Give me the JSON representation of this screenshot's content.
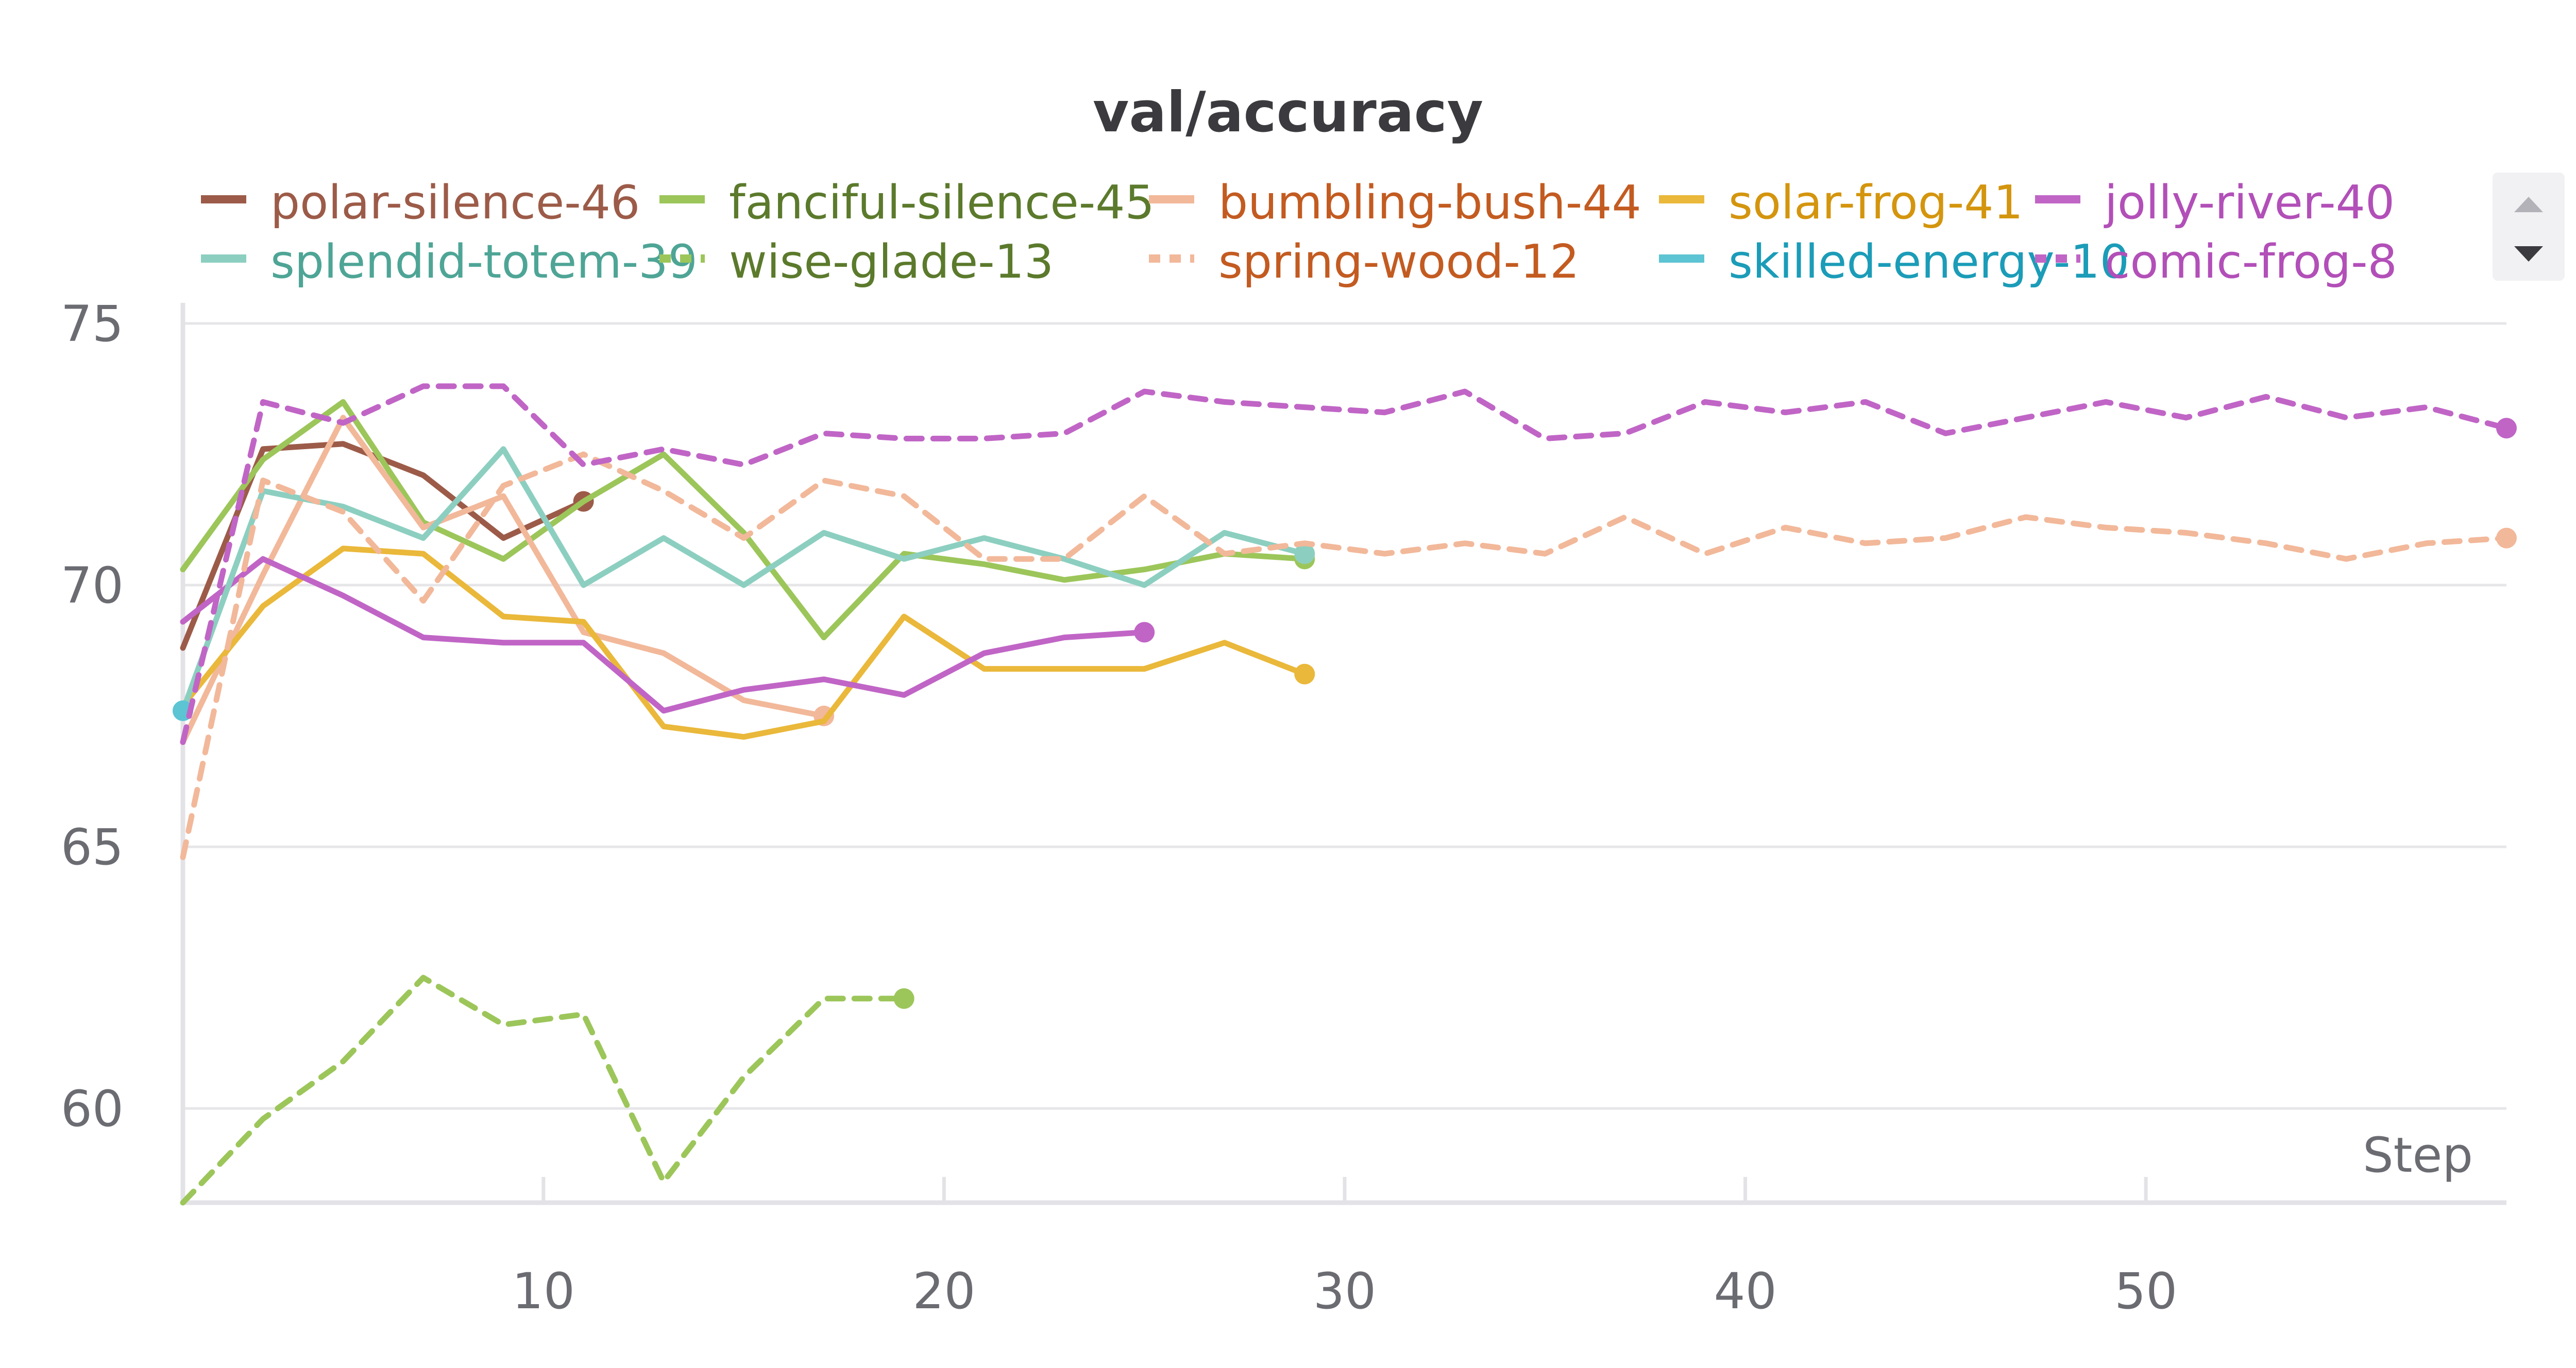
{
  "chart_data": {
    "type": "line",
    "title": "val/accuracy",
    "xlabel": "Step",
    "ylabel": "",
    "xlim": [
      1,
      59
    ],
    "ylim": [
      58.2,
      75
    ],
    "xticks": [
      10,
      20,
      30,
      40,
      50
    ],
    "yticks": [
      60,
      65,
      70,
      75
    ],
    "grid": true,
    "legend_position": "top",
    "series": [
      {
        "name": "polar-silence-46",
        "color": "#9c5b48",
        "dashed": false,
        "x": [
          1,
          3,
          5,
          7,
          9,
          11
        ],
        "y": [
          68.8,
          72.6,
          72.7,
          72.1,
          70.9,
          71.6
        ]
      },
      {
        "name": "fanciful-silence-45",
        "color": "#9cc65a",
        "label_color": "#5b7a2c",
        "dashed": false,
        "x": [
          1,
          3,
          5,
          7,
          9,
          11,
          13,
          15,
          17,
          19,
          21,
          23,
          25,
          27,
          29
        ],
        "y": [
          70.3,
          72.4,
          73.5,
          71.2,
          70.5,
          71.6,
          72.5,
          71.0,
          69.0,
          70.6,
          70.4,
          70.1,
          70.3,
          70.6,
          70.5
        ]
      },
      {
        "name": "bumbling-bush-44",
        "color": "#f2b89a",
        "label_color": "#c35b21",
        "dashed": false,
        "x": [
          1,
          3,
          5,
          7,
          9,
          11,
          13,
          15,
          17
        ],
        "y": [
          67.0,
          70.2,
          73.2,
          71.1,
          71.7,
          69.1,
          68.7,
          67.8,
          67.5
        ]
      },
      {
        "name": "solar-frog-41",
        "color": "#eab83a",
        "label_color": "#d4950e",
        "dashed": false,
        "x": [
          1,
          3,
          5,
          7,
          9,
          11,
          13,
          15,
          17,
          19,
          21,
          23,
          25,
          27,
          29
        ],
        "y": [
          67.7,
          69.6,
          70.7,
          70.6,
          69.4,
          69.3,
          67.3,
          67.1,
          67.4,
          69.4,
          68.4,
          68.4,
          68.4,
          68.9,
          68.3
        ]
      },
      {
        "name": "jolly-river-40",
        "color": "#c065c6",
        "label_color": "#b24fb8",
        "dashed": false,
        "x": [
          1,
          3,
          5,
          7,
          9,
          11,
          13,
          15,
          17,
          19,
          21,
          23,
          25
        ],
        "y": [
          69.3,
          70.5,
          69.8,
          69.0,
          68.9,
          68.9,
          67.6,
          68.0,
          68.2,
          67.9,
          68.7,
          69.0,
          69.1
        ]
      },
      {
        "name": "splendid-totem-39",
        "color": "#8ccfc0",
        "label_color": "#4ea596",
        "dashed": false,
        "x": [
          1,
          3,
          5,
          7,
          9,
          11,
          13,
          15,
          17,
          19,
          21,
          23,
          25,
          27,
          29
        ],
        "y": [
          67.6,
          71.8,
          71.5,
          70.9,
          72.6,
          70.0,
          70.9,
          70.0,
          71.0,
          70.5,
          70.9,
          70.5,
          70.0,
          71.0,
          70.6
        ]
      },
      {
        "name": "wise-glade-13",
        "color": "#9cc65a",
        "label_color": "#5b7a2c",
        "dashed": true,
        "x": [
          1,
          3,
          5,
          7,
          9,
          11,
          13,
          15,
          17,
          19
        ],
        "y": [
          58.2,
          59.8,
          60.9,
          62.5,
          61.6,
          61.8,
          58.6,
          60.6,
          62.1,
          62.1
        ]
      },
      {
        "name": "spring-wood-12",
        "color": "#f2b89a",
        "label_color": "#c35b21",
        "dashed": true,
        "x": [
          1,
          3,
          5,
          7,
          9,
          11,
          13,
          15,
          17,
          19,
          21,
          23,
          25,
          27,
          29,
          31,
          33,
          35,
          37,
          39,
          41,
          43,
          45,
          47,
          49,
          51,
          53,
          55,
          57,
          59
        ],
        "y": [
          64.8,
          72.0,
          71.4,
          69.7,
          71.9,
          72.5,
          71.8,
          70.9,
          72.0,
          71.7,
          70.5,
          70.5,
          71.7,
          70.6,
          70.8,
          70.6,
          70.8,
          70.6,
          71.3,
          70.6,
          71.1,
          70.8,
          70.9,
          71.3,
          71.1,
          71.0,
          70.8,
          70.5,
          70.8,
          70.9
        ]
      },
      {
        "name": "skilled-energy-10",
        "color": "#5cc4d3",
        "label_color": "#1b9cb8",
        "dashed": false,
        "x": [
          1
        ],
        "y": [
          67.6
        ]
      },
      {
        "name": "comic-frog-8",
        "color": "#c065c6",
        "label_color": "#b24fb8",
        "dashed": true,
        "x": [
          1,
          3,
          5,
          7,
          9,
          11,
          13,
          15,
          17,
          19,
          21,
          23,
          25,
          27,
          29,
          31,
          33,
          35,
          37,
          39,
          41,
          43,
          45,
          47,
          49,
          51,
          53,
          55,
          57,
          59
        ],
        "y": [
          67.0,
          73.5,
          73.1,
          73.8,
          73.8,
          72.3,
          72.6,
          72.3,
          72.9,
          72.8,
          72.8,
          72.9,
          73.7,
          73.5,
          73.4,
          73.3,
          73.7,
          72.8,
          72.9,
          73.5,
          73.3,
          73.5,
          72.9,
          73.2,
          73.5,
          73.2,
          73.6,
          73.2,
          73.4,
          73.0
        ]
      }
    ]
  }
}
